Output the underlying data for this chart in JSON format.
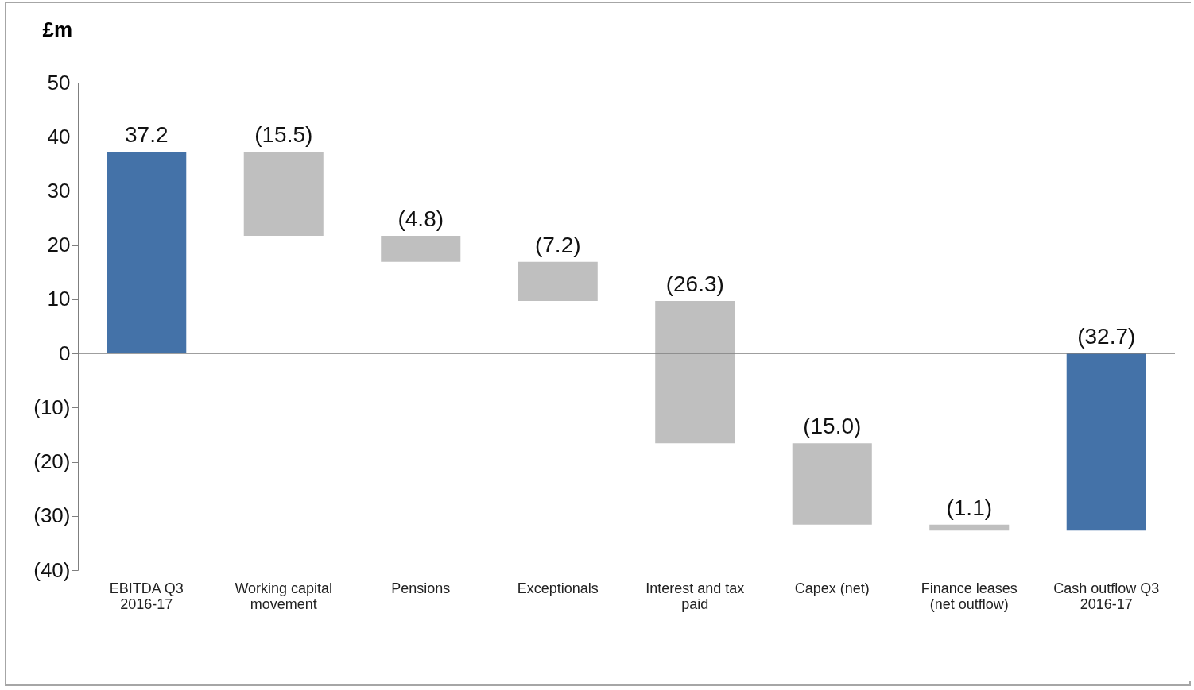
{
  "chart_data": {
    "type": "bar",
    "ylabel": "£m",
    "categories": [
      "EBITDA Q3 2016-17",
      "Working capital movement",
      "Pensions",
      "Exceptionals",
      "Interest and tax paid",
      "Capex (net)",
      "Finance leases (net outflow)",
      "Cash outflow Q3 2016-17"
    ],
    "values": [
      37.2,
      -15.5,
      -4.8,
      -7.2,
      -26.3,
      -15.0,
      -1.1,
      -32.7
    ],
    "base": [
      0,
      37.2,
      21.7,
      16.9,
      9.7,
      -16.6,
      -31.6,
      0
    ],
    "colors": [
      "#4472a8",
      "#bfbfbf",
      "#bfbfbf",
      "#bfbfbf",
      "#bfbfbf",
      "#bfbfbf",
      "#bfbfbf",
      "#4472a8"
    ],
    "value_labels": [
      "37.2",
      "(15.5)",
      "(4.8)",
      "(7.2)",
      "(26.3)",
      "(15.0)",
      "(1.1)",
      "(32.7)"
    ],
    "ylim": [
      -40,
      50
    ],
    "yticks": [
      {
        "value": -40,
        "label": "(40)"
      },
      {
        "value": -30,
        "label": "(30)"
      },
      {
        "value": -20,
        "label": "(20)"
      },
      {
        "value": -10,
        "label": "(10)"
      },
      0,
      10,
      20,
      30,
      40,
      50
    ],
    "ref_lines": [
      {
        "axis": "y",
        "value": 0,
        "color": "#7f7f7f"
      }
    ],
    "grid": false
  }
}
